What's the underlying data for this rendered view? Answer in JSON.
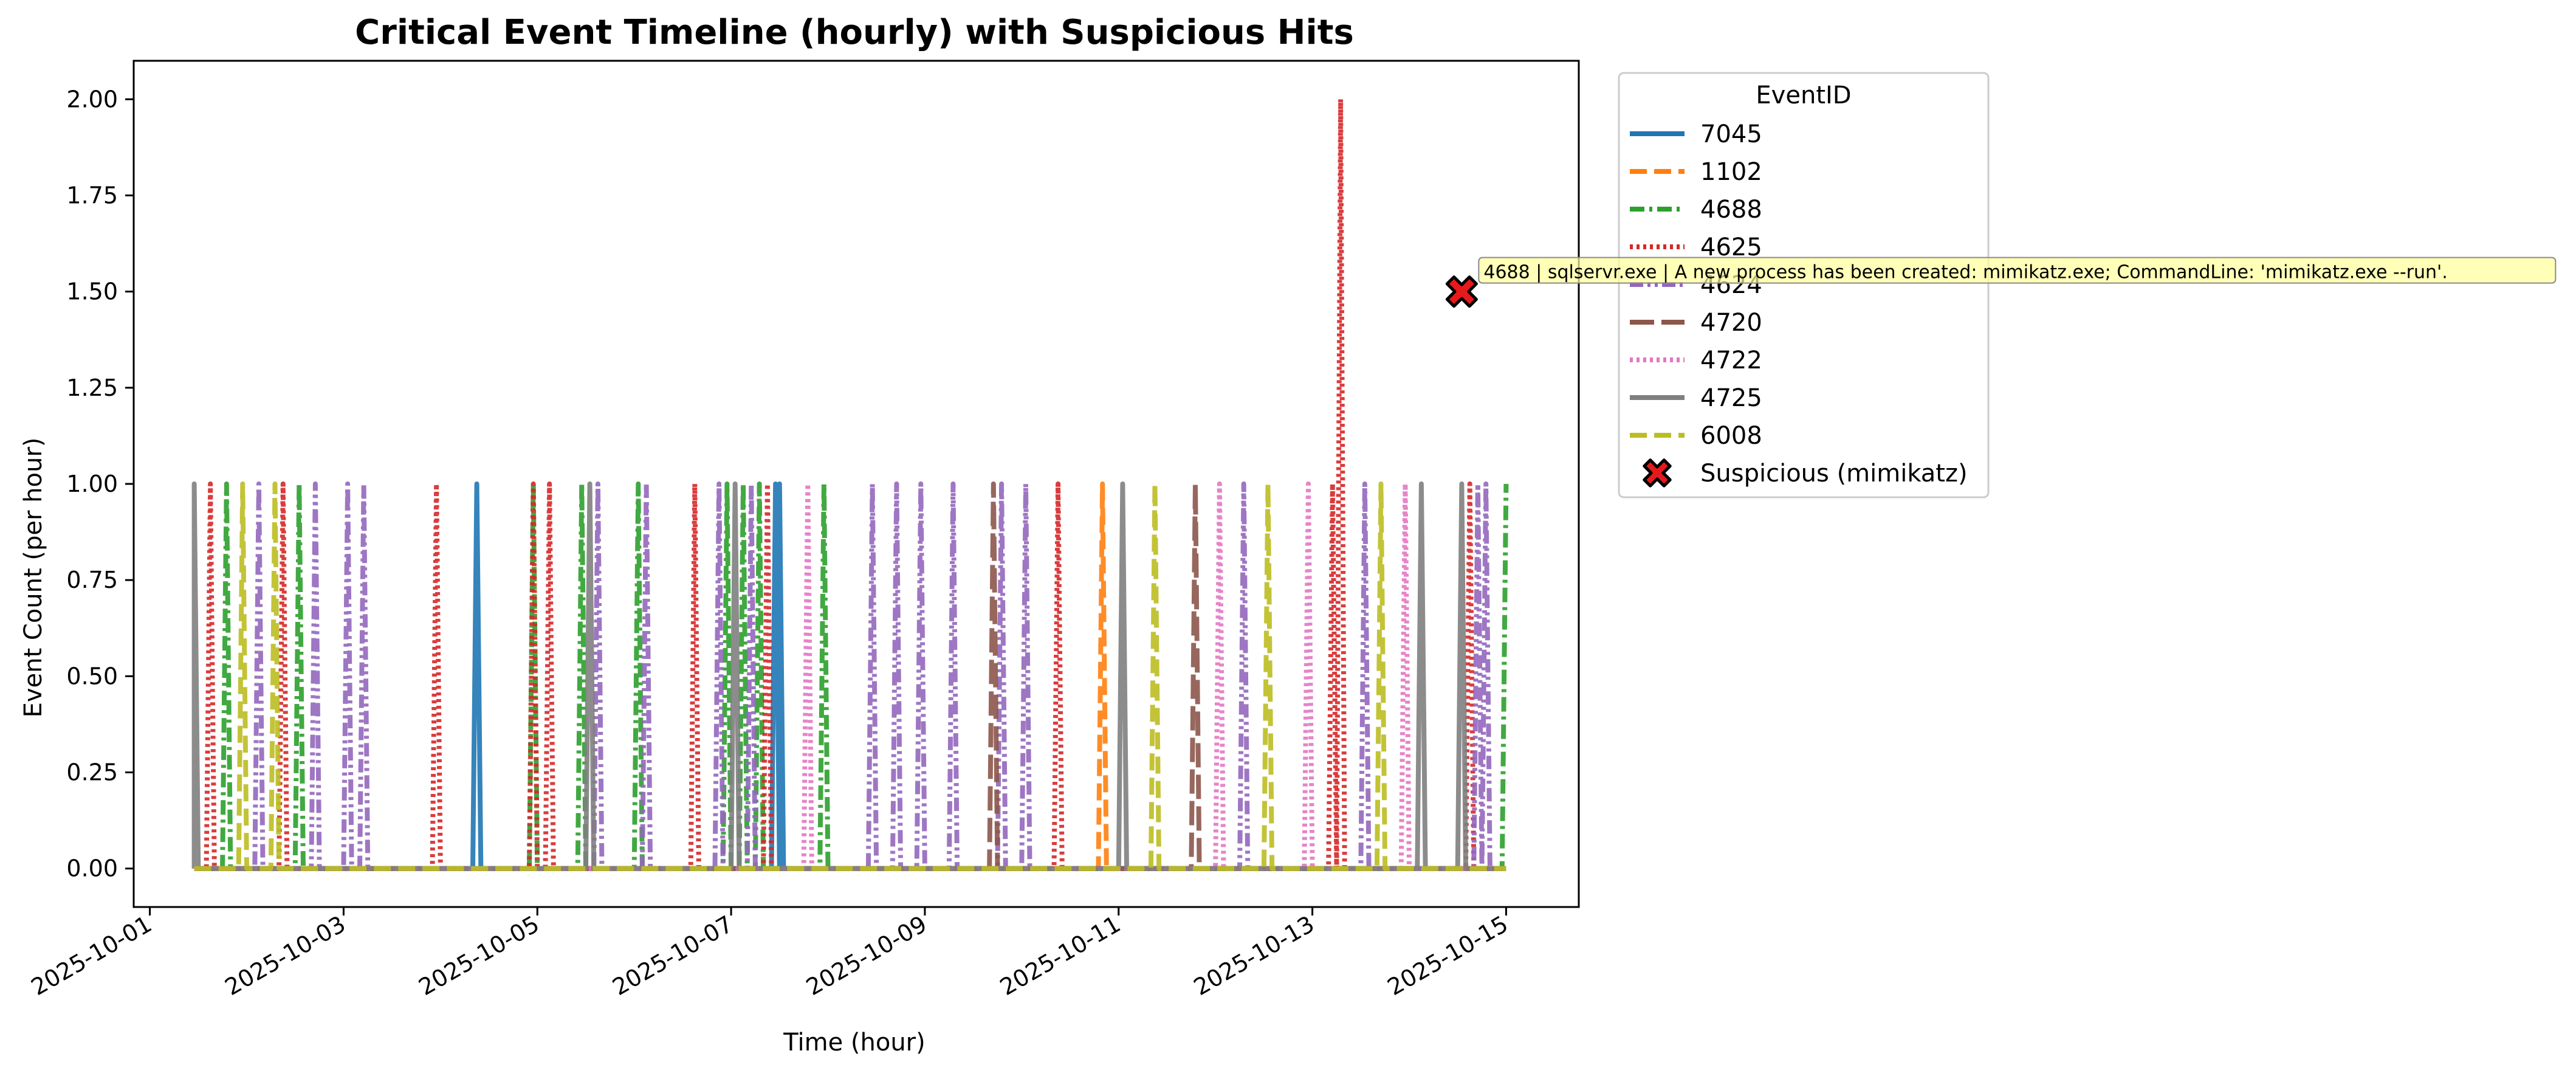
{
  "chart_data": {
    "type": "line",
    "title": "Critical Event Timeline (hourly) with Suspicious Hits",
    "xlabel": "Time (hour)",
    "ylabel": "Event Count (per hour)",
    "xlim": [
      "2025-09-30T20:00",
      "2025-10-15T18:00"
    ],
    "ylim": [
      -0.1,
      2.1
    ],
    "x_ticks": [
      "2025-10-01",
      "2025-10-03",
      "2025-10-05",
      "2025-10-07",
      "2025-10-09",
      "2025-10-11",
      "2025-10-13",
      "2025-10-15"
    ],
    "y_ticks": [
      0.0,
      0.25,
      0.5,
      0.75,
      1.0,
      1.25,
      1.5,
      1.75,
      2.0
    ],
    "y_tick_labels": [
      "0.00",
      "0.25",
      "0.50",
      "0.75",
      "1.00",
      "1.25",
      "1.50",
      "1.75",
      "2.00"
    ],
    "grid": false,
    "x_range": [
      "2025-10-01T11:00",
      "2025-10-15T00:00"
    ],
    "legend": {
      "title": "EventID",
      "placement": "outside-top-right"
    },
    "series": [
      {
        "name": "7045",
        "color": "#1f77b4",
        "dash": "solid",
        "peaks": [
          {
            "t": "2025-10-04T09:00",
            "v": 1
          },
          {
            "t": "2025-10-07T11:00",
            "v": 1
          },
          {
            "t": "2025-10-07T12:00",
            "v": 1
          }
        ]
      },
      {
        "name": "1102",
        "color": "#ff7f0e",
        "dash": "dashed",
        "peaks": [
          {
            "t": "2025-10-10T20:00",
            "v": 1
          }
        ]
      },
      {
        "name": "4688",
        "color": "#2ca02c",
        "dash": "dashdot",
        "peaks": [
          {
            "t": "2025-10-01T19:00",
            "v": 1
          },
          {
            "t": "2025-10-02T13:00",
            "v": 1
          },
          {
            "t": "2025-10-04T23:00",
            "v": 1
          },
          {
            "t": "2025-10-05T11:00",
            "v": 1
          },
          {
            "t": "2025-10-06T01:00",
            "v": 1
          },
          {
            "t": "2025-10-06T23:00",
            "v": 1
          },
          {
            "t": "2025-10-07T03:00",
            "v": 1
          },
          {
            "t": "2025-10-07T07:00",
            "v": 1
          },
          {
            "t": "2025-10-07T23:00",
            "v": 1
          },
          {
            "t": "2025-10-15T00:00",
            "v": 1
          }
        ]
      },
      {
        "name": "4625",
        "color": "#d62728",
        "dash": "dotted",
        "peaks": [
          {
            "t": "2025-10-01T15:00",
            "v": 1
          },
          {
            "t": "2025-10-02T09:00",
            "v": 1
          },
          {
            "t": "2025-10-03T23:00",
            "v": 1
          },
          {
            "t": "2025-10-04T23:00",
            "v": 1
          },
          {
            "t": "2025-10-05T03:00",
            "v": 1
          },
          {
            "t": "2025-10-06T15:00",
            "v": 1
          },
          {
            "t": "2025-10-07T09:00",
            "v": 1
          },
          {
            "t": "2025-10-10T09:00",
            "v": 1
          },
          {
            "t": "2025-10-13T05:00",
            "v": 1
          },
          {
            "t": "2025-10-13T07:00",
            "v": 2
          },
          {
            "t": "2025-10-14T15:00",
            "v": 1
          }
        ]
      },
      {
        "name": "4624",
        "color": "#9467bd",
        "dash": "dashdotdot",
        "peaks": [
          {
            "t": "2025-10-02T03:00",
            "v": 1
          },
          {
            "t": "2025-10-02T17:00",
            "v": 1
          },
          {
            "t": "2025-10-03T01:00",
            "v": 1
          },
          {
            "t": "2025-10-03T05:00",
            "v": 1
          },
          {
            "t": "2025-10-05T15:00",
            "v": 1
          },
          {
            "t": "2025-10-06T03:00",
            "v": 1
          },
          {
            "t": "2025-10-06T21:00",
            "v": 1
          },
          {
            "t": "2025-10-07T05:00",
            "v": 1
          },
          {
            "t": "2025-10-08T11:00",
            "v": 1
          },
          {
            "t": "2025-10-08T17:00",
            "v": 1
          },
          {
            "t": "2025-10-08T23:00",
            "v": 1
          },
          {
            "t": "2025-10-09T07:00",
            "v": 1
          },
          {
            "t": "2025-10-09T19:00",
            "v": 1
          },
          {
            "t": "2025-10-10T01:00",
            "v": 1
          },
          {
            "t": "2025-10-12T07:00",
            "v": 1
          },
          {
            "t": "2025-10-13T13:00",
            "v": 1
          },
          {
            "t": "2025-10-14T17:00",
            "v": 1
          },
          {
            "t": "2025-10-14T19:00",
            "v": 1
          }
        ]
      },
      {
        "name": "4720",
        "color": "#8c564b",
        "dash": "longdash",
        "peaks": [
          {
            "t": "2025-10-09T17:00",
            "v": 1
          },
          {
            "t": "2025-10-11T19:00",
            "v": 1
          }
        ]
      },
      {
        "name": "4722",
        "color": "#e377c2",
        "dash": "dotted",
        "peaks": [
          {
            "t": "2025-10-07T19:00",
            "v": 1
          },
          {
            "t": "2025-10-12T01:00",
            "v": 1
          },
          {
            "t": "2025-10-12T23:00",
            "v": 1
          },
          {
            "t": "2025-10-13T23:00",
            "v": 1
          }
        ]
      },
      {
        "name": "4725",
        "color": "#7f7f7f",
        "dash": "solid",
        "peaks": [
          {
            "t": "2025-10-01T11:00",
            "v": 1
          },
          {
            "t": "2025-10-05T13:00",
            "v": 1
          },
          {
            "t": "2025-10-07T01:00",
            "v": 1
          },
          {
            "t": "2025-10-11T01:00",
            "v": 1
          },
          {
            "t": "2025-10-14T03:00",
            "v": 1
          },
          {
            "t": "2025-10-14T13:00",
            "v": 1
          }
        ]
      },
      {
        "name": "6008",
        "color": "#bcbd22",
        "dash": "dashed",
        "peaks": [
          {
            "t": "2025-10-01T23:00",
            "v": 1
          },
          {
            "t": "2025-10-02T07:00",
            "v": 1
          },
          {
            "t": "2025-10-11T09:00",
            "v": 1
          },
          {
            "t": "2025-10-12T13:00",
            "v": 1
          },
          {
            "t": "2025-10-13T17:00",
            "v": 1
          }
        ]
      }
    ],
    "suspicious": {
      "name": "Suspicious (mimikatz)",
      "color": "#e41a1c",
      "points": [
        {
          "t": "2025-10-14T13:00",
          "v": 1.5
        }
      ],
      "annotation": "4688 | sqlservr.exe | A new process has been created: mimikatz.exe; CommandLine: 'mimikatz.exe --run'."
    }
  }
}
